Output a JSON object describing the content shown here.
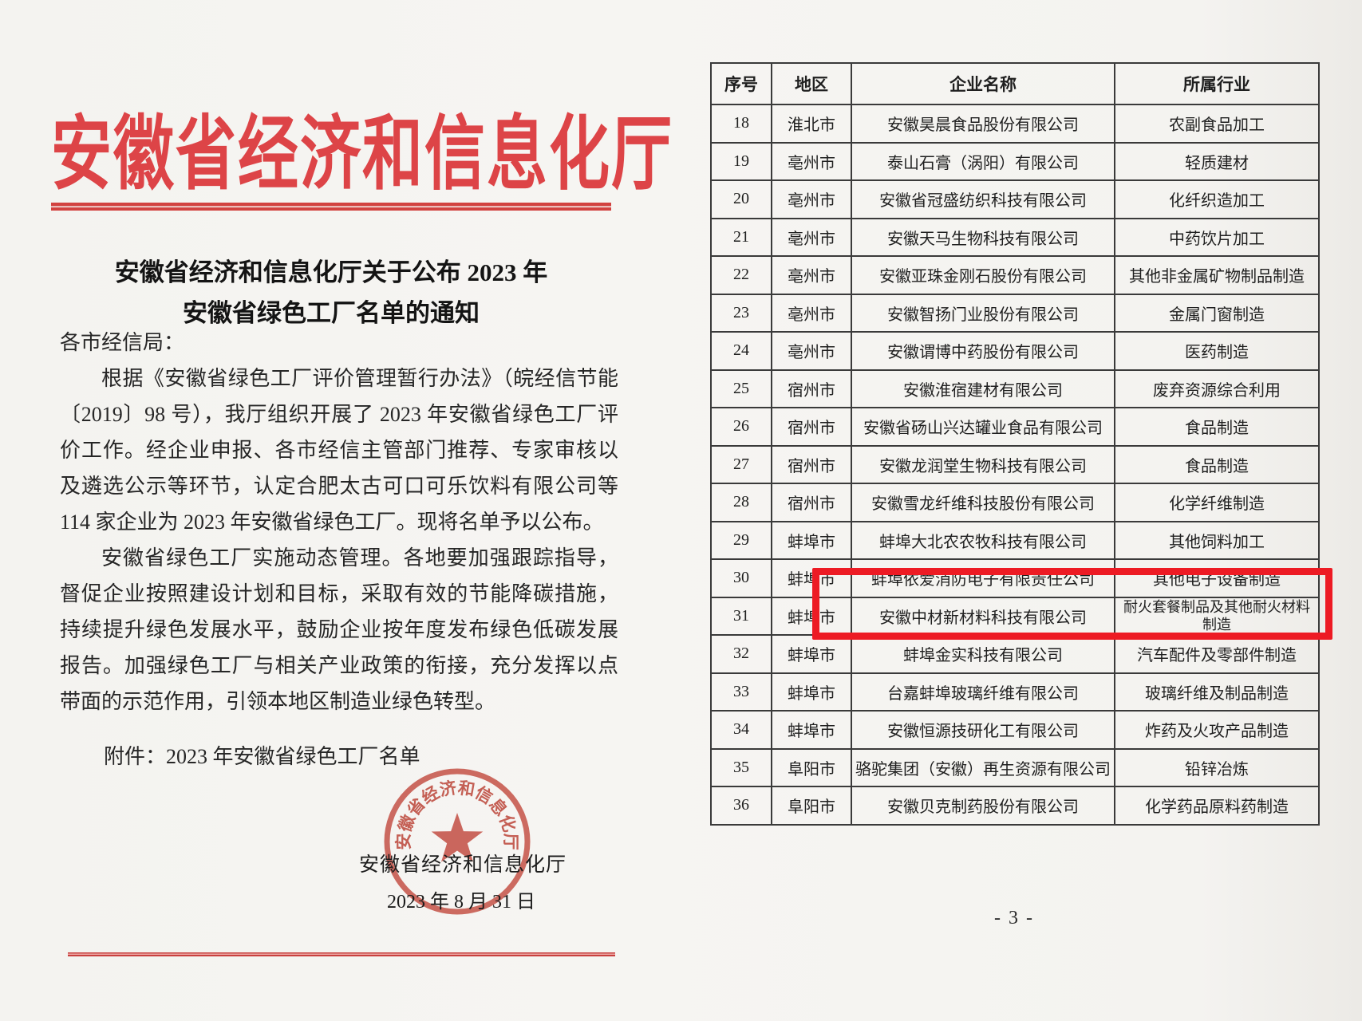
{
  "colors": {
    "title_red": "#dd4447",
    "rule_red": "#d24240",
    "seal_red": "#c43a2e",
    "highlight_red": "#ed1b24",
    "table_border": "#3a3a3a",
    "paper": "#f4f3f0"
  },
  "document": {
    "agency_title": "安徽省经济和信息化厅",
    "notice_title_line1": "安徽省经济和信息化厅关于公布 2023 年",
    "notice_title_line2": "安徽省绿色工厂名单的通知",
    "salutation": "各市经信局：",
    "paragraphs": [
      "根据《安徽省绿色工厂评价管理暂行办法》（皖经信节能〔2019〕98 号），我厅组织开展了 2023 年安徽省绿色工厂评价工作。经企业申报、各市经信主管部门推荐、专家审核以及遴选公示等环节，认定合肥太古可口可乐饮料有限公司等 114 家企业为 2023 年安徽省绿色工厂。现将名单予以公布。",
      "安徽省绿色工厂实施动态管理。各地要加强跟踪指导，督促企业按照建设计划和目标，采取有效的节能降碳措施，持续提升绿色发展水平，鼓励企业按年度发布绿色低碳发展报告。加强绿色工厂与相关产业政策的衔接，充分发挥以点带面的示范作用，引领本地区制造业绿色转型。"
    ],
    "attachment_line": "附件：2023 年安徽省绿色工厂名单",
    "seal_text": "安徽省经济和信息化厅",
    "signature": "安徽省经济和信息化厅",
    "date": "2023 年 8 月 31 日"
  },
  "table": {
    "headers": [
      "序号",
      "地区",
      "企业名称",
      "所属行业"
    ],
    "rows": [
      [
        "18",
        "淮北市",
        "安徽昊晨食品股份有限公司",
        "农副食品加工"
      ],
      [
        "19",
        "亳州市",
        "泰山石膏（涡阳）有限公司",
        "轻质建材"
      ],
      [
        "20",
        "亳州市",
        "安徽省冠盛纺织科技有限公司",
        "化纤织造加工"
      ],
      [
        "21",
        "亳州市",
        "安徽天马生物科技有限公司",
        "中药饮片加工"
      ],
      [
        "22",
        "亳州市",
        "安徽亚珠金刚石股份有限公司",
        "其他非金属矿物制品制造"
      ],
      [
        "23",
        "亳州市",
        "安徽智扬门业股份有限公司",
        "金属门窗制造"
      ],
      [
        "24",
        "亳州市",
        "安徽谓博中药股份有限公司",
        "医药制造"
      ],
      [
        "25",
        "宿州市",
        "安徽淮宿建材有限公司",
        "废弃资源综合利用"
      ],
      [
        "26",
        "宿州市",
        "安徽省砀山兴达罐业食品有限公司",
        "食品制造"
      ],
      [
        "27",
        "宿州市",
        "安徽龙润堂生物科技有限公司",
        "食品制造"
      ],
      [
        "28",
        "宿州市",
        "安徽雪龙纤维科技股份有限公司",
        "化学纤维制造"
      ],
      [
        "29",
        "蚌埠市",
        "蚌埠大北农农牧科技有限公司",
        "其他饲料加工"
      ],
      [
        "30",
        "蚌埠市",
        "蚌埠依爱消防电子有限责任公司",
        "其他电子设备制造"
      ],
      [
        "31",
        "蚌埠市",
        "安徽中材新材料科技有限公司",
        "耐火套餐制品及其他耐火材料制造"
      ],
      [
        "32",
        "蚌埠市",
        "蚌埠金实科技有限公司",
        "汽车配件及零部件制造"
      ],
      [
        "33",
        "蚌埠市",
        "台嘉蚌埠玻璃纤维有限公司",
        "玻璃纤维及制品制造"
      ],
      [
        "34",
        "蚌埠市",
        "安徽恒源技研化工有限公司",
        "炸药及火攻产品制造"
      ],
      [
        "35",
        "阜阳市",
        "骆驼集团（安徽）再生资源有限公司",
        "铅锌冶炼"
      ],
      [
        "36",
        "阜阳市",
        "安徽贝克制药股份有限公司",
        "化学药品原料药制造"
      ]
    ],
    "highlighted_row_serial": "30"
  },
  "page_number": "- 3 -"
}
